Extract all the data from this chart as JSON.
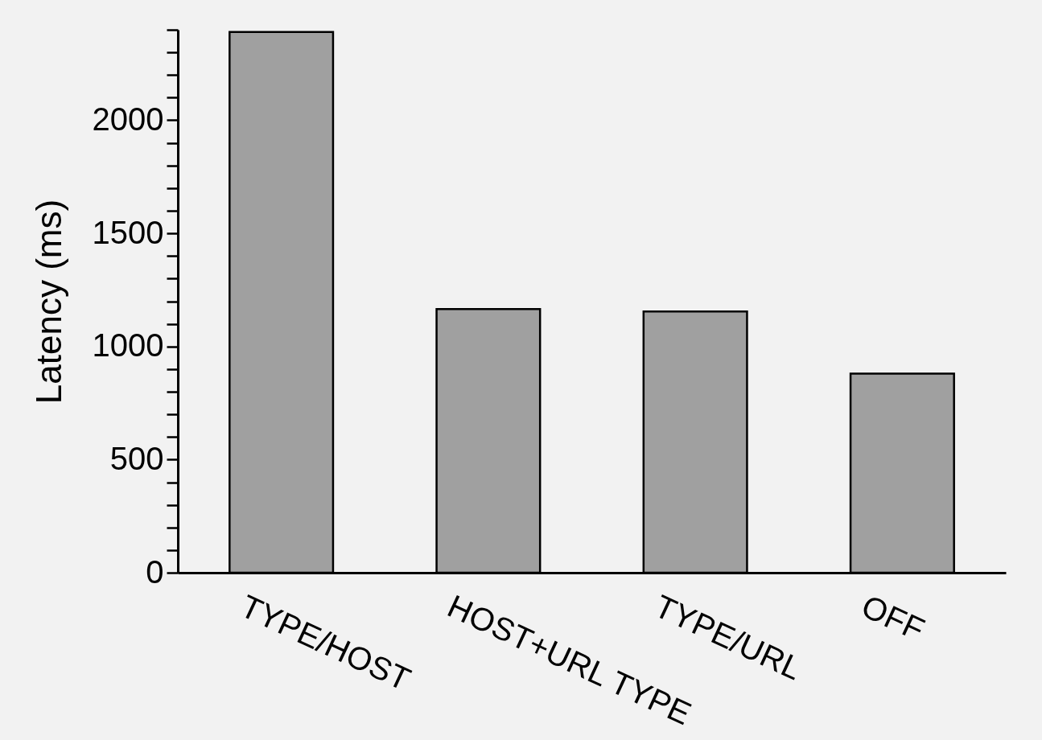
{
  "chart_data": {
    "type": "bar",
    "ylabel": "Latency (ms)",
    "categories": [
      "TYPE/HOST",
      "HOST+URL TYPE",
      "TYPE/URL",
      "OFF"
    ],
    "values": [
      2390,
      1165,
      1155,
      880
    ],
    "color": "#a0a0a0",
    "ylim": [
      0,
      2400
    ],
    "yticks": [
      0,
      {
        "value": 100,
        "label": null
      },
      {
        "value": 200,
        "label": null
      },
      {
        "value": 300,
        "label": null
      },
      {
        "value": 400,
        "label": null
      },
      500,
      {
        "value": 600,
        "label": null
      },
      {
        "value": 700,
        "label": null
      },
      {
        "value": 800,
        "label": null
      },
      {
        "value": 900,
        "label": null
      },
      1000,
      {
        "value": 1100,
        "label": null
      },
      {
        "value": 1200,
        "label": null
      },
      {
        "value": 1300,
        "label": null
      },
      {
        "value": 1400,
        "label": null
      },
      1500,
      {
        "value": 1600,
        "label": null
      },
      {
        "value": 1700,
        "label": null
      },
      {
        "value": 1800,
        "label": null
      },
      {
        "value": 1900,
        "label": null
      },
      2000,
      {
        "value": 2100,
        "label": null
      },
      {
        "value": 2200,
        "label": null
      },
      {
        "value": 2300,
        "label": null
      },
      {
        "value": 2400,
        "label": null
      }
    ],
    "grid": false
  }
}
